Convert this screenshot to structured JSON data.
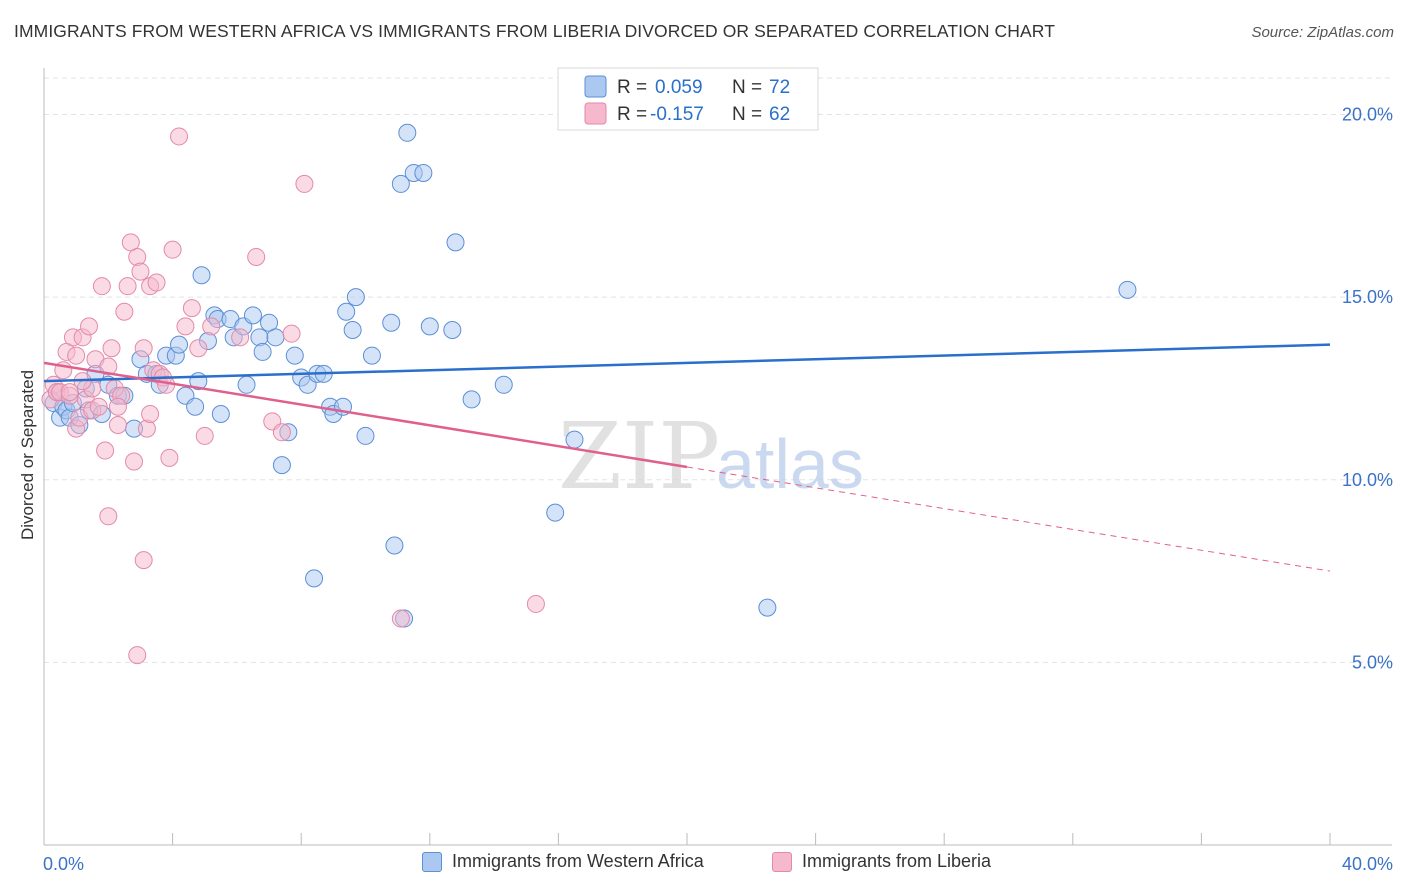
{
  "title": "IMMIGRANTS FROM WESTERN AFRICA VS IMMIGRANTS FROM LIBERIA DIVORCED OR SEPARATED CORRELATION CHART",
  "source": "Source: ZipAtlas.com",
  "watermark": {
    "zip": "ZIP",
    "atlas": "atlas"
  },
  "legend": {
    "rows": [
      {
        "r_label": "R =",
        "r_value": "0.059",
        "n_label": "N =",
        "n_value": "72"
      },
      {
        "r_label": "R =",
        "r_value": "-0.157",
        "n_label": "N =",
        "n_value": "62"
      }
    ]
  },
  "colors": {
    "blue_fill": "#aac8f0",
    "blue_stroke": "#5b8fd6",
    "blue_line": "#2a6fcc",
    "pink_fill": "#f5b8cc",
    "pink_stroke": "#e38aa9",
    "pink_line": "#e0608d",
    "tick_label": "#3b72c8",
    "grid": "#e3e3e3"
  },
  "chart_data": {
    "type": "scatter",
    "title": "IMMIGRANTS FROM WESTERN AFRICA VS IMMIGRANTS FROM LIBERIA DIVORCED OR SEPARATED CORRELATION CHART",
    "xlabel": "",
    "ylabel": "Divorced or Separated",
    "xlim": [
      0,
      40
    ],
    "ylim": [
      0,
      21
    ],
    "x_tick_labels": [
      "0.0%",
      "40.0%"
    ],
    "y_ticks": [
      5,
      10,
      15,
      20
    ],
    "y_tick_labels": [
      "5.0%",
      "10.0%",
      "15.0%",
      "20.0%"
    ],
    "grid": true,
    "legend_placement": "top-center",
    "series": [
      {
        "name": "Immigrants from Western Africa",
        "color": "blue",
        "r": 0.059,
        "n": 72,
        "trend": {
          "x": [
            0,
            40
          ],
          "y": [
            12.7,
            13.7
          ],
          "solid_until": 40
        },
        "points": [
          [
            0.3,
            12.1
          ],
          [
            0.4,
            12.4
          ],
          [
            0.5,
            11.7
          ],
          [
            0.6,
            12.0
          ],
          [
            0.7,
            11.9
          ],
          [
            0.8,
            11.7
          ],
          [
            0.9,
            12.1
          ],
          [
            1.1,
            11.5
          ],
          [
            1.3,
            12.5
          ],
          [
            1.4,
            11.9
          ],
          [
            1.6,
            12.9
          ],
          [
            1.8,
            11.8
          ],
          [
            2.0,
            12.6
          ],
          [
            2.3,
            12.3
          ],
          [
            2.5,
            12.3
          ],
          [
            2.8,
            11.4
          ],
          [
            3.0,
            13.3
          ],
          [
            3.2,
            12.9
          ],
          [
            3.5,
            12.9
          ],
          [
            3.6,
            12.6
          ],
          [
            3.8,
            13.4
          ],
          [
            4.1,
            13.4
          ],
          [
            4.2,
            13.7
          ],
          [
            4.4,
            12.3
          ],
          [
            4.7,
            12.0
          ],
          [
            4.8,
            12.7
          ],
          [
            4.9,
            15.6
          ],
          [
            5.1,
            13.8
          ],
          [
            5.3,
            14.5
          ],
          [
            5.4,
            14.4
          ],
          [
            5.5,
            11.8
          ],
          [
            5.8,
            14.4
          ],
          [
            5.9,
            13.9
          ],
          [
            6.2,
            14.2
          ],
          [
            6.3,
            12.6
          ],
          [
            6.5,
            14.5
          ],
          [
            6.7,
            13.9
          ],
          [
            6.8,
            13.5
          ],
          [
            7.0,
            14.3
          ],
          [
            7.2,
            13.9
          ],
          [
            7.4,
            10.4
          ],
          [
            7.6,
            11.3
          ],
          [
            7.8,
            13.4
          ],
          [
            8.0,
            12.8
          ],
          [
            8.2,
            12.6
          ],
          [
            8.5,
            12.9
          ],
          [
            8.7,
            12.9
          ],
          [
            8.9,
            12.0
          ],
          [
            9.0,
            11.8
          ],
          [
            9.3,
            12.0
          ],
          [
            9.4,
            14.6
          ],
          [
            9.6,
            14.1
          ],
          [
            9.7,
            15.0
          ],
          [
            10.0,
            11.2
          ],
          [
            10.2,
            13.4
          ],
          [
            10.8,
            14.3
          ],
          [
            10.9,
            8.2
          ],
          [
            11.1,
            18.1
          ],
          [
            11.3,
            19.5
          ],
          [
            11.5,
            18.4
          ],
          [
            11.8,
            18.4
          ],
          [
            12.0,
            14.2
          ],
          [
            12.7,
            14.1
          ],
          [
            12.8,
            16.5
          ],
          [
            13.3,
            12.2
          ],
          [
            14.3,
            12.6
          ],
          [
            15.9,
            9.1
          ],
          [
            16.5,
            11.1
          ],
          [
            8.4,
            7.3
          ],
          [
            11.2,
            6.2
          ],
          [
            22.5,
            6.5
          ],
          [
            33.7,
            15.2
          ]
        ]
      },
      {
        "name": "Immigrants from Liberia",
        "color": "pink",
        "r": -0.157,
        "n": 62,
        "trend": {
          "x": [
            0,
            40
          ],
          "y": [
            13.2,
            7.5
          ],
          "solid_until": 20
        },
        "points": [
          [
            0.2,
            12.2
          ],
          [
            0.3,
            12.6
          ],
          [
            0.4,
            12.4
          ],
          [
            0.5,
            12.4
          ],
          [
            0.6,
            13.0
          ],
          [
            0.7,
            13.5
          ],
          [
            0.8,
            12.3
          ],
          [
            0.9,
            13.9
          ],
          [
            1.0,
            13.4
          ],
          [
            1.0,
            11.4
          ],
          [
            1.1,
            11.7
          ],
          [
            1.2,
            13.9
          ],
          [
            1.3,
            12.2
          ],
          [
            1.4,
            14.2
          ],
          [
            1.5,
            11.9
          ],
          [
            1.6,
            13.3
          ],
          [
            1.7,
            12.0
          ],
          [
            1.8,
            15.3
          ],
          [
            1.9,
            10.8
          ],
          [
            2.0,
            13.1
          ],
          [
            2.1,
            13.6
          ],
          [
            2.2,
            12.5
          ],
          [
            2.3,
            11.5
          ],
          [
            2.4,
            12.3
          ],
          [
            2.5,
            14.6
          ],
          [
            2.6,
            15.3
          ],
          [
            2.7,
            16.5
          ],
          [
            2.8,
            10.5
          ],
          [
            2.9,
            16.1
          ],
          [
            3.0,
            15.7
          ],
          [
            3.1,
            13.6
          ],
          [
            3.2,
            11.4
          ],
          [
            3.3,
            15.3
          ],
          [
            3.4,
            13.0
          ],
          [
            3.5,
            15.4
          ],
          [
            3.6,
            12.9
          ],
          [
            3.7,
            12.8
          ],
          [
            3.8,
            12.6
          ],
          [
            3.9,
            10.6
          ],
          [
            4.0,
            16.3
          ],
          [
            4.2,
            19.4
          ],
          [
            4.4,
            14.2
          ],
          [
            4.6,
            14.7
          ],
          [
            4.8,
            13.6
          ],
          [
            5.0,
            11.2
          ],
          [
            5.2,
            14.2
          ],
          [
            6.1,
            13.9
          ],
          [
            6.6,
            16.1
          ],
          [
            7.1,
            11.6
          ],
          [
            7.4,
            11.3
          ],
          [
            7.7,
            14.0
          ],
          [
            8.1,
            18.1
          ],
          [
            11.1,
            6.2
          ],
          [
            2.0,
            9.0
          ],
          [
            3.1,
            7.8
          ],
          [
            2.9,
            5.2
          ],
          [
            15.3,
            6.6
          ],
          [
            1.5,
            12.5
          ],
          [
            2.3,
            12.0
          ],
          [
            0.8,
            12.4
          ],
          [
            1.2,
            12.7
          ],
          [
            3.3,
            11.8
          ]
        ]
      }
    ]
  },
  "bottom_legend": [
    {
      "label": "Immigrants from Western Africa",
      "color": "blue"
    },
    {
      "label": "Immigrants from Liberia",
      "color": "pink"
    }
  ]
}
